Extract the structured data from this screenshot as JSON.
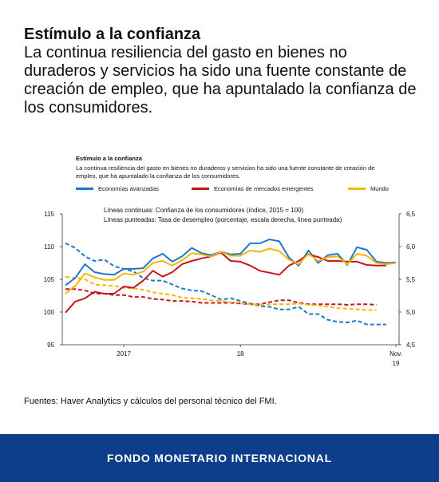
{
  "headline": {
    "title": "Estímulo a la confianza",
    "subtitle": "La continua resiliencia del gasto en bienes no duraderos y servicios ha sido una fuente constante de creación de empleo, que ha apuntalado la confianza de los consumidores."
  },
  "figure": {
    "title": "Estímulo a la confianza",
    "subtitle": "La continua resiliencia del gasto en bienes no duraderos y servicios ha sido una fuente constante de creación de empleo, que ha apuntalado la confianza de los consumidores.",
    "note1": "Líneas continuas: Confianza de los consumidores (índice, 2015 = 100)",
    "note2": "Líneas punteadas: Tasa de desempleo (porcentaje, escala derecha, línea punteada)"
  },
  "chart_data": {
    "type": "line",
    "x_labels": [
      {
        "i": 6,
        "text": "2017"
      },
      {
        "i": 18,
        "text": "18"
      },
      {
        "i": 34,
        "text": "Nov."
      },
      {
        "i": 34,
        "text": "19"
      }
    ],
    "y_left": {
      "min": 95,
      "max": 115,
      "ticks": [
        95,
        100,
        105,
        110,
        115
      ]
    },
    "y_right": {
      "min": 4.5,
      "max": 6.5,
      "ticks": [
        "4,5",
        "5,0",
        "5,5",
        "6,0",
        "6,5"
      ]
    },
    "series": [
      {
        "name": "Economías avanzadas",
        "color": "#1f77c9",
        "axis": "left",
        "dash": false,
        "values": [
          104.1,
          105.2,
          107.3,
          106.1,
          105.8,
          105.7,
          106.6,
          106.6,
          106.7,
          108.2,
          108.9,
          107.7,
          108.5,
          109.8,
          109.0,
          108.7,
          109.2,
          108.8,
          108.9,
          110.5,
          110.5,
          111.1,
          110.8,
          108.3,
          107.1,
          109.4,
          107.5,
          108.7,
          108.9,
          107.2,
          109.9,
          109.5,
          107.7,
          107.5,
          107.6
        ]
      },
      {
        "name": "Economías de mercados emergentes",
        "color": "#c4161c",
        "axis": "left",
        "dash": false,
        "values": [
          99.9,
          101.6,
          102.1,
          103.1,
          102.8,
          102.8,
          103.9,
          103.7,
          104.8,
          106.3,
          105.4,
          106.1,
          107.3,
          107.8,
          108.2,
          108.5,
          109.1,
          107.8,
          107.7,
          107.1,
          106.3,
          106.0,
          105.7,
          107.1,
          107.8,
          108.8,
          108.4,
          107.8,
          107.8,
          107.7,
          107.7,
          107.2,
          107.1,
          107.1
        ]
      },
      {
        "name": "Mundo",
        "color": "#f5b700",
        "axis": "left",
        "dash": false,
        "values": [
          102.8,
          104.0,
          105.9,
          105.3,
          104.9,
          104.9,
          105.9,
          105.7,
          106.2,
          107.5,
          107.8,
          107.1,
          107.9,
          109.0,
          108.8,
          108.5,
          109.2,
          108.6,
          108.6,
          109.4,
          109.2,
          109.7,
          109.3,
          108.0,
          107.3,
          108.9,
          107.8,
          108.4,
          108.5,
          107.3,
          108.9,
          108.6,
          107.5,
          107.3,
          107.5
        ]
      },
      {
        "name": "Economías avanzadas",
        "color": "#1f77c9",
        "axis": "right",
        "dash": true,
        "values": [
          6.05,
          5.98,
          5.85,
          5.78,
          5.8,
          5.7,
          5.66,
          5.62,
          5.52,
          5.48,
          5.48,
          5.42,
          5.36,
          5.33,
          5.32,
          5.26,
          5.19,
          5.21,
          5.17,
          5.13,
          5.09,
          5.08,
          5.04,
          5.04,
          5.08,
          4.97,
          4.97,
          4.88,
          4.85,
          4.84,
          4.87,
          4.81,
          4.81,
          4.81
        ]
      },
      {
        "name": "Economías de mercados emergentes",
        "color": "#c4161c",
        "axis": "right",
        "dash": true,
        "values": [
          5.35,
          5.35,
          5.33,
          5.28,
          5.28,
          5.26,
          5.26,
          5.23,
          5.23,
          5.2,
          5.19,
          5.17,
          5.17,
          5.16,
          5.14,
          5.14,
          5.14,
          5.14,
          5.13,
          5.12,
          5.12,
          5.15,
          5.18,
          5.18,
          5.14,
          5.12,
          5.12,
          5.12,
          5.12,
          5.11,
          5.12,
          5.12,
          5.11
        ]
      },
      {
        "name": "Mundo",
        "color": "#f5b700",
        "axis": "right",
        "dash": true,
        "values": [
          5.54,
          5.52,
          5.5,
          5.42,
          5.41,
          5.4,
          5.37,
          5.36,
          5.34,
          5.3,
          5.28,
          5.26,
          5.22,
          5.21,
          5.2,
          5.18,
          5.17,
          5.15,
          5.14,
          5.12,
          5.11,
          5.12,
          5.12,
          5.12,
          5.13,
          5.11,
          5.1,
          5.08,
          5.06,
          5.05,
          5.04,
          5.03,
          5.03
        ]
      }
    ],
    "legend_placement": "top",
    "grid": false
  },
  "source": "Fuentes: Haver Analytics y cálculos del personal técnico del FMI.",
  "footer": "FONDO MONETARIO INTERNACIONAL"
}
